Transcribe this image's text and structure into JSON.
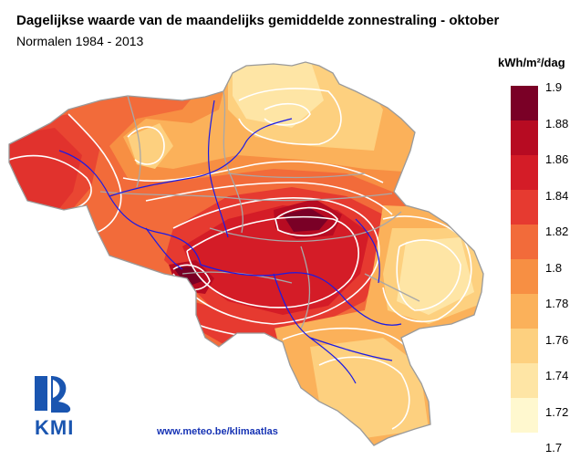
{
  "title": "Dagelijkse waarde van de maandelijks gemiddelde zonnestraling - oktober",
  "subtitle": "Normalen 1984 - 2013",
  "legend": {
    "unit": "kWh/m²/dag",
    "ticks": [
      "1.9",
      "1.88",
      "1.86",
      "1.84",
      "1.82",
      "1.8",
      "1.78",
      "1.76",
      "1.74",
      "1.72",
      "1.7"
    ],
    "colors": [
      "#7a0026",
      "#b70b22",
      "#d41c27",
      "#e63a30",
      "#f26b3a",
      "#f78f43",
      "#fbb15a",
      "#fdd07f",
      "#fee5a5",
      "#fff8cf"
    ]
  },
  "url": "www.meteo.be/klimaatlas",
  "logo": {
    "text": "KMI",
    "icon": "kmi-logo-icon"
  },
  "map_colors": {
    "outline": "#b0b0b0",
    "river": "#1a1aff",
    "isoline": "#ffffff"
  }
}
